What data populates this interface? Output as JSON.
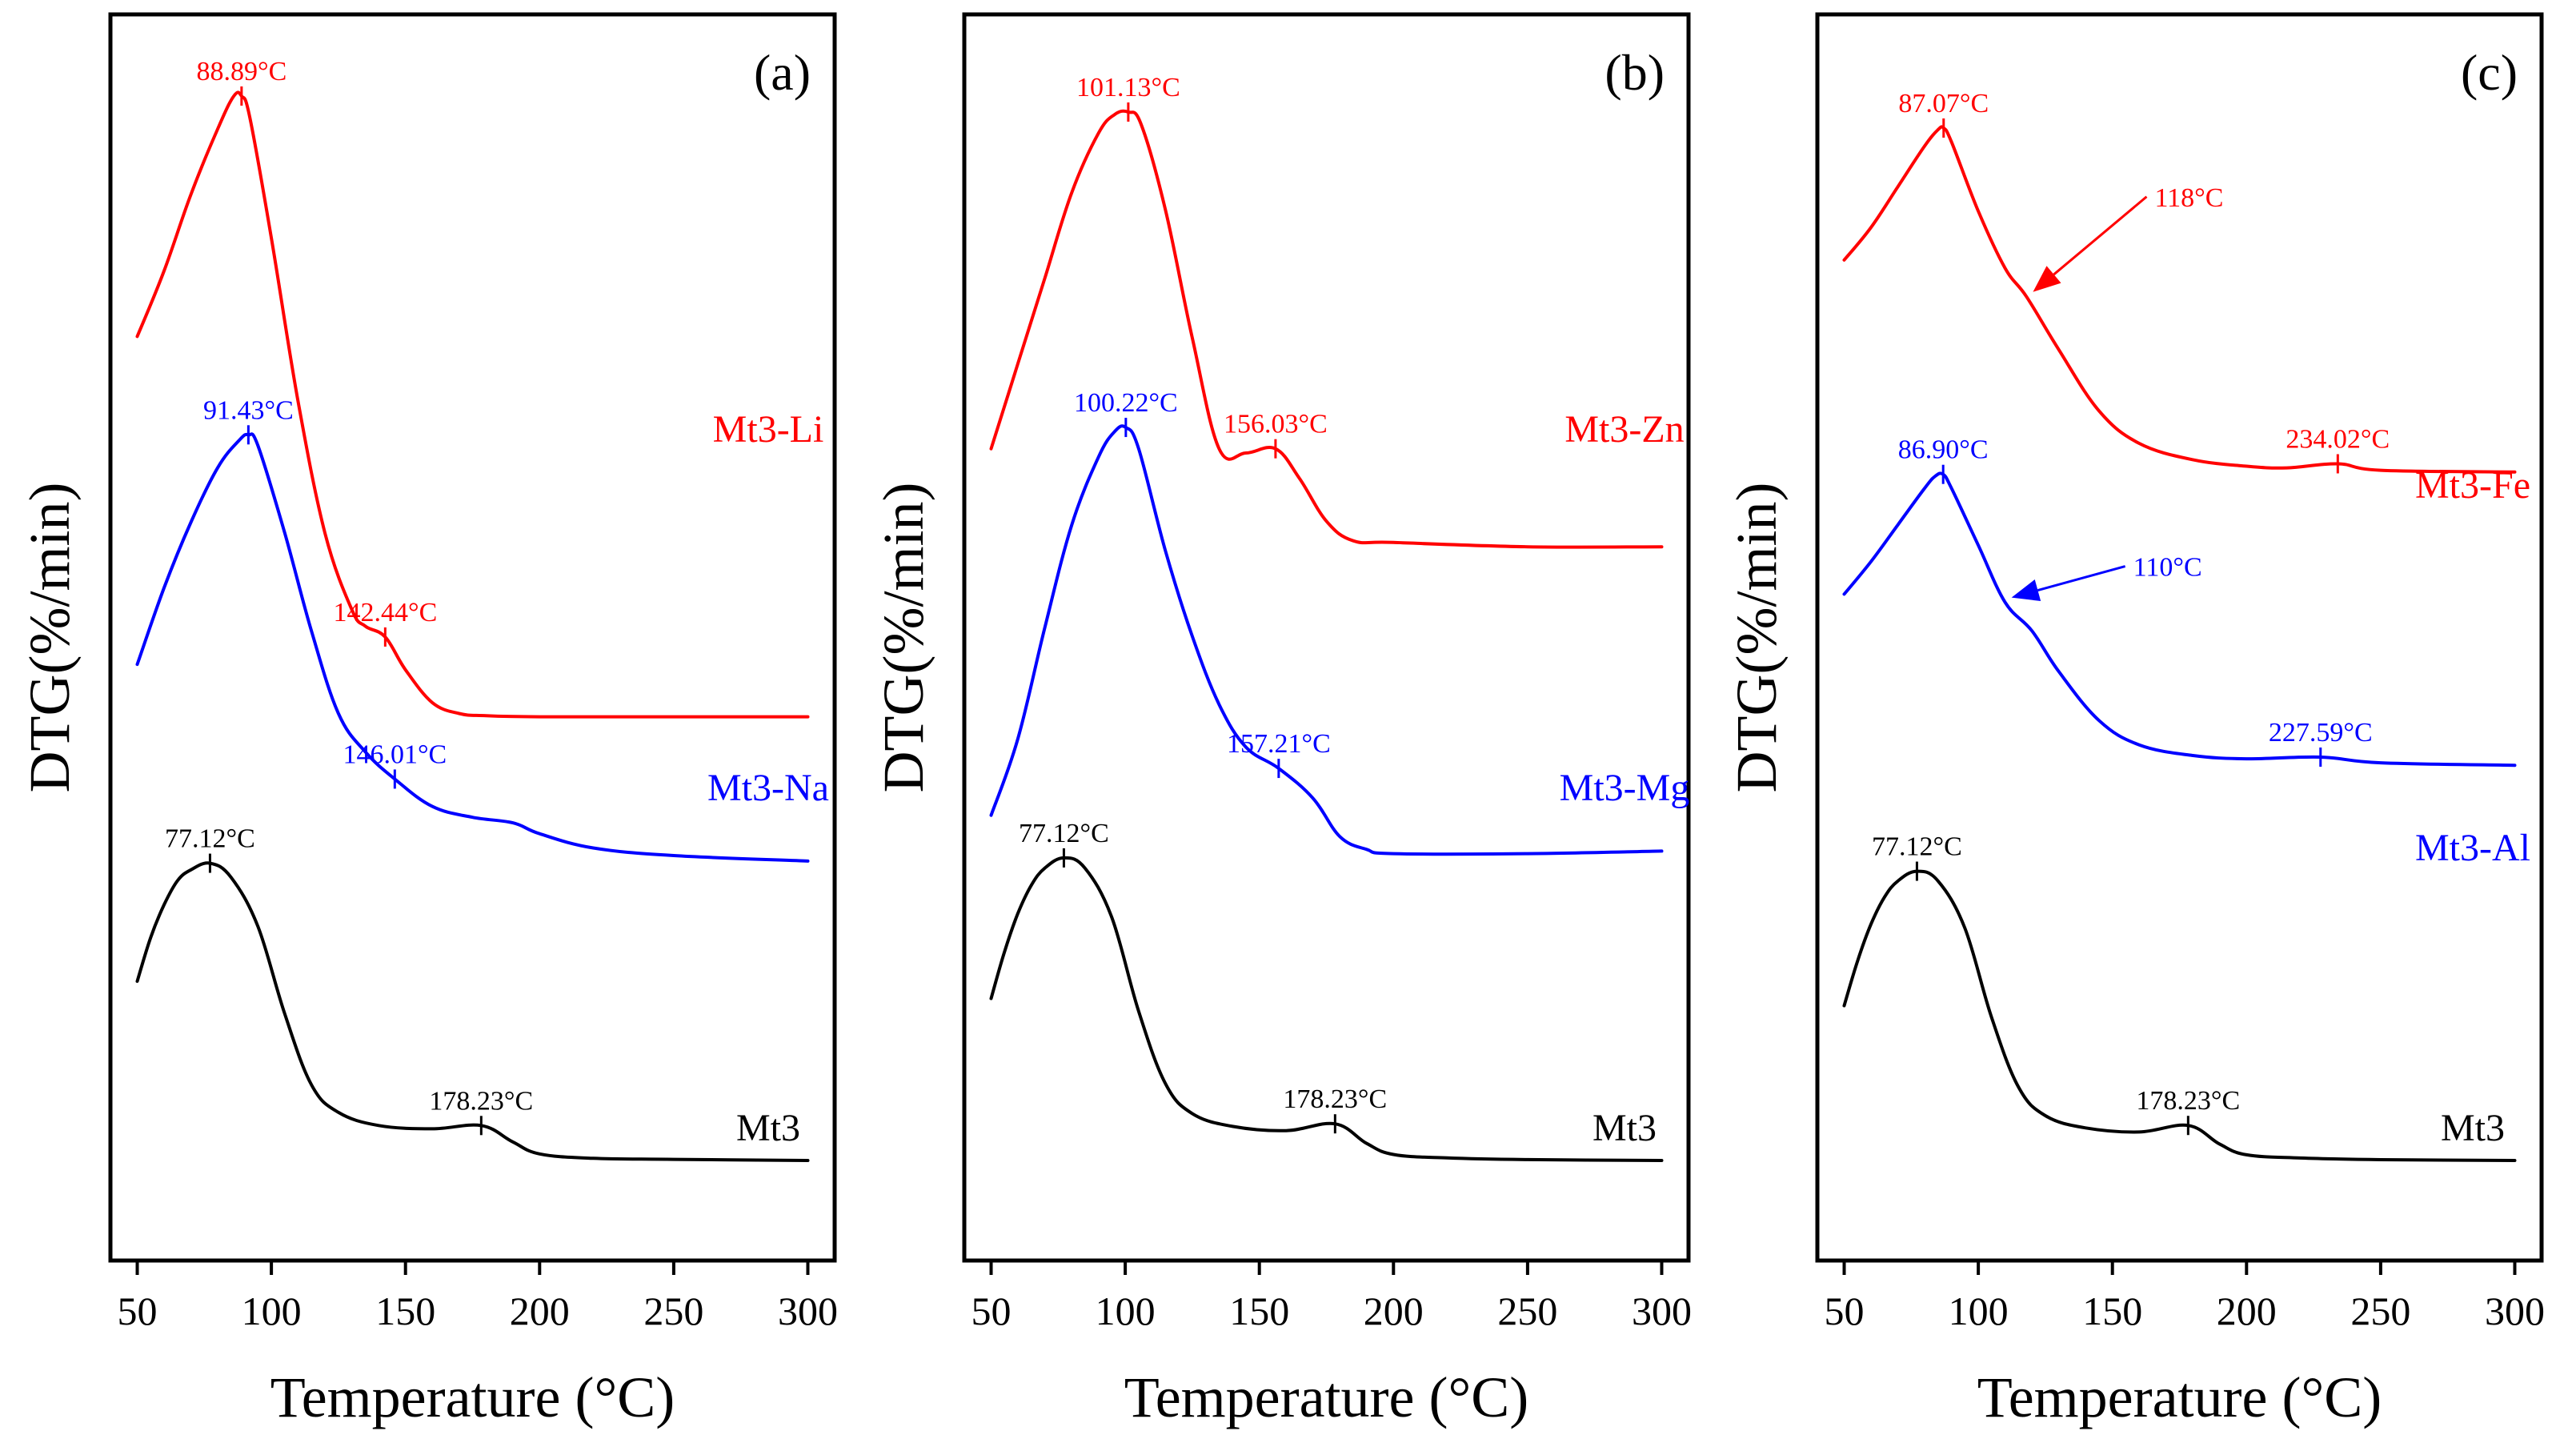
{
  "chart_data": [
    {
      "type": "line",
      "panel_label": "(a)",
      "xlabel": "Temperature (°C)",
      "ylabel": "DTG(%/min)",
      "xlim": [
        40,
        310
      ],
      "x_ticks": [
        "50",
        "100",
        "150",
        "200",
        "250",
        "300"
      ],
      "y_ticks": "none",
      "series": [
        {
          "name": "Mt3-Li",
          "color": "#ff0000",
          "x": [
            50,
            60,
            70,
            80,
            86,
            88.89,
            92,
            100,
            110,
            120,
            130,
            135,
            142.44,
            150,
            160,
            170,
            180,
            200,
            250,
            300
          ],
          "y": [
            7.4,
            8.0,
            8.7,
            9.3,
            9.6,
            9.6,
            9.4,
            8.3,
            6.8,
            5.6,
            4.9,
            4.75,
            4.65,
            4.35,
            4.05,
            3.95,
            3.93,
            3.92,
            3.92,
            3.92
          ],
          "peaks": [
            {
              "x": 88.89,
              "label": "88.89°C"
            },
            {
              "x": 142.44,
              "label": "142.44°C"
            }
          ]
        },
        {
          "name": "Mt3-Na",
          "color": "#0000ff",
          "x": [
            50,
            60,
            70,
            80,
            88,
            91.43,
            95,
            105,
            115,
            125,
            135,
            146.01,
            160,
            175,
            190,
            200,
            220,
            250,
            300
          ],
          "y": [
            4.4,
            5.1,
            5.7,
            6.2,
            6.45,
            6.5,
            6.4,
            5.6,
            4.7,
            3.95,
            3.6,
            3.35,
            3.1,
            3.0,
            2.95,
            2.85,
            2.72,
            2.65,
            2.6
          ],
          "peaks": [
            {
              "x": 91.43,
              "label": "91.43°C"
            },
            {
              "x": 146.01,
              "label": "146.01°C"
            }
          ]
        },
        {
          "name": "Mt3",
          "color": "#000000",
          "x": [
            50,
            55,
            60,
            65,
            70,
            77.12,
            85,
            95,
            105,
            115,
            125,
            140,
            160,
            178.23,
            190,
            200,
            220,
            250,
            300
          ],
          "y": [
            1.5,
            1.9,
            2.2,
            2.42,
            2.52,
            2.58,
            2.45,
            2.0,
            1.2,
            0.55,
            0.3,
            0.18,
            0.15,
            0.18,
            0.03,
            -0.08,
            -0.12,
            -0.13,
            -0.14
          ],
          "peaks": [
            {
              "x": 77.12,
              "label": "77.12°C"
            },
            {
              "x": 178.23,
              "label": "178.23°C"
            }
          ]
        }
      ]
    },
    {
      "type": "line",
      "panel_label": "(b)",
      "xlabel": "Temperature (°C)",
      "ylabel": "DTG(%/min)",
      "xlim": [
        40,
        310
      ],
      "x_ticks": [
        "50",
        "100",
        "150",
        "200",
        "250",
        "300"
      ],
      "y_ticks": "none",
      "series": [
        {
          "name": "Mt3-Zn",
          "color": "#ff0000",
          "x": [
            50,
            60,
            70,
            80,
            90,
            96,
            101.13,
            106,
            115,
            125,
            135,
            145,
            156.03,
            165,
            175,
            185,
            200,
            250,
            300
          ],
          "y": [
            5.3,
            6.3,
            7.3,
            8.3,
            9.0,
            9.22,
            9.25,
            9.1,
            8.1,
            6.6,
            5.3,
            5.25,
            5.3,
            4.95,
            4.45,
            4.22,
            4.2,
            4.15,
            4.15
          ],
          "peaks": [
            {
              "x": 101.13,
              "label": "101.13°C"
            },
            {
              "x": 156.03,
              "label": "156.03°C"
            }
          ]
        },
        {
          "name": "Mt3-Mg",
          "color": "#0000ff",
          "x": [
            50,
            60,
            70,
            80,
            90,
            96,
            100.22,
            105,
            115,
            125,
            135,
            145,
            157.21,
            170,
            180,
            190,
            200,
            250,
            300
          ],
          "y": [
            1.0,
            1.9,
            3.2,
            4.4,
            5.2,
            5.5,
            5.55,
            5.3,
            4.1,
            3.1,
            2.3,
            1.8,
            1.55,
            1.2,
            0.75,
            0.6,
            0.55,
            0.55,
            0.58
          ],
          "peaks": [
            {
              "x": 100.22,
              "label": "100.22°C"
            },
            {
              "x": 157.21,
              "label": "157.21°C"
            }
          ]
        },
        {
          "name": "Mt3",
          "color": "#000000",
          "x": [
            50,
            55,
            60,
            65,
            70,
            77.12,
            85,
            95,
            105,
            115,
            125,
            140,
            160,
            178.23,
            190,
            200,
            220,
            250,
            300
          ],
          "y": [
            -1.15,
            -0.6,
            -0.15,
            0.18,
            0.38,
            0.5,
            0.38,
            -0.2,
            -1.3,
            -2.15,
            -2.5,
            -2.65,
            -2.7,
            -2.62,
            -2.85,
            -2.98,
            -3.02,
            -3.04,
            -3.05
          ],
          "peaks": [
            {
              "x": 77.12,
              "label": "77.12°C"
            },
            {
              "x": 178.23,
              "label": "178.23°C"
            }
          ]
        }
      ]
    },
    {
      "type": "line",
      "panel_label": "(c)",
      "xlabel": "Temperature (°C)",
      "ylabel": "DTG(%/min)",
      "xlim": [
        40,
        310
      ],
      "x_ticks": [
        "50",
        "100",
        "150",
        "200",
        "250",
        "300"
      ],
      "y_ticks": "none",
      "series": [
        {
          "name": "Mt3-Fe",
          "color": "#ff0000",
          "x": [
            50,
            60,
            70,
            80,
            85,
            87.07,
            90,
            100,
            110,
            118,
            130,
            145,
            160,
            180,
            200,
            215,
            234.02,
            250,
            300
          ],
          "y": [
            8.0,
            8.4,
            8.9,
            9.4,
            9.6,
            9.62,
            9.45,
            8.6,
            7.9,
            7.55,
            6.9,
            6.15,
            5.75,
            5.55,
            5.47,
            5.45,
            5.5,
            5.42,
            5.4
          ],
          "peaks": [
            {
              "x": 87.07,
              "label": "87.07°C"
            },
            {
              "x": 234.02,
              "label": "234.02°C"
            }
          ],
          "annotation": {
            "x": 118,
            "label": "118°C"
          }
        },
        {
          "name": "Mt3-Al",
          "color": "#0000ff",
          "x": [
            50,
            60,
            70,
            80,
            84,
            86.9,
            90,
            100,
            110,
            120,
            130,
            145,
            160,
            180,
            200,
            227.59,
            250,
            300
          ],
          "y": [
            3.9,
            4.3,
            4.75,
            5.2,
            5.35,
            5.37,
            5.2,
            4.5,
            3.8,
            3.45,
            2.95,
            2.35,
            2.05,
            1.92,
            1.88,
            1.9,
            1.83,
            1.8
          ],
          "peaks": [
            {
              "x": 86.9,
              "label": "86.90°C"
            },
            {
              "x": 227.59,
              "label": "227.59°C"
            }
          ],
          "annotation": {
            "x": 110,
            "label": "110°C"
          }
        },
        {
          "name": "Mt3",
          "color": "#000000",
          "x": [
            50,
            55,
            60,
            65,
            70,
            77.12,
            85,
            95,
            105,
            115,
            125,
            140,
            160,
            178.23,
            190,
            200,
            220,
            250,
            300
          ],
          "y": [
            -1.15,
            -0.6,
            -0.15,
            0.18,
            0.38,
            0.5,
            0.38,
            -0.2,
            -1.3,
            -2.15,
            -2.5,
            -2.65,
            -2.7,
            -2.62,
            -2.85,
            -2.98,
            -3.02,
            -3.04,
            -3.05
          ],
          "peaks": [
            {
              "x": 77.12,
              "label": "77.12°C"
            },
            {
              "x": 178.23,
              "label": "178.23°C"
            }
          ]
        }
      ]
    }
  ]
}
